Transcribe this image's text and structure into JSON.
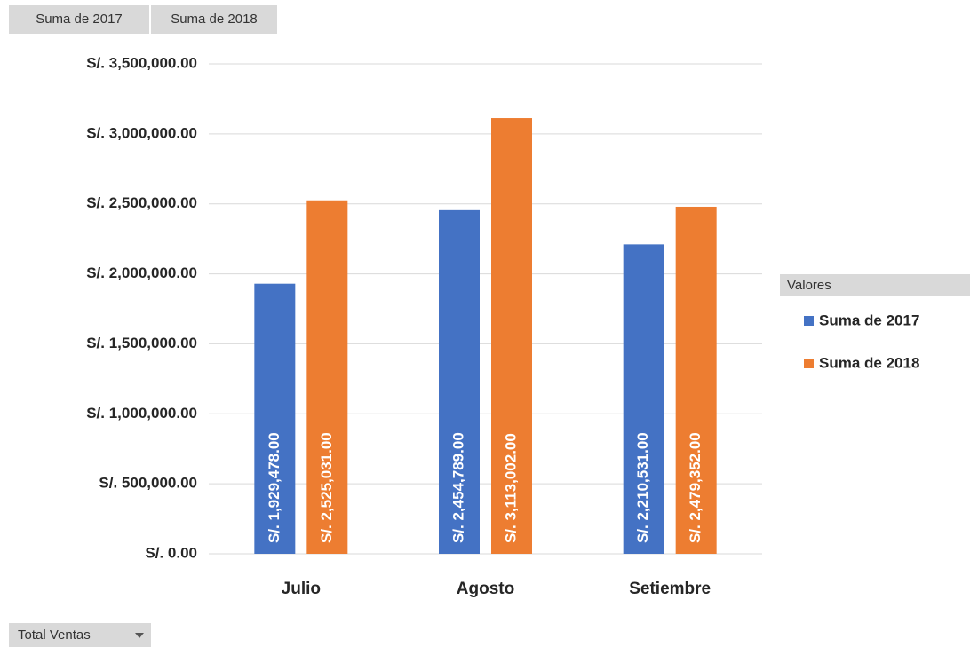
{
  "chart_data": {
    "type": "bar",
    "field_buttons": [
      "Suma de 2017",
      "Suma de 2018"
    ],
    "axis_field_button": "Total Ventas",
    "legend_title": "Valores",
    "legend": "right",
    "grid": true,
    "categories": [
      "Julio",
      "Agosto",
      "Setiembre"
    ],
    "series": [
      {
        "name": "Suma de 2017",
        "color": "#4472c4",
        "values": [
          1929478,
          2454789,
          2210531
        ],
        "value_labels": [
          "S/. 1,929,478.00",
          "S/. 2,454,789.00",
          "S/. 2,210,531.00"
        ]
      },
      {
        "name": "Suma de 2018",
        "color": "#ed7d31",
        "values": [
          2525031,
          3113002,
          2479352
        ],
        "value_labels": [
          "S/. 2,525,031.00",
          "S/. 3,113,002.00",
          "S/. 2,479,352.00"
        ]
      }
    ],
    "ylim": [
      0,
      3500000
    ],
    "yticks": [
      {
        "value": 0,
        "label": "S/. 0.00"
      },
      {
        "value": 500000,
        "label": "S/. 500,000.00"
      },
      {
        "value": 1000000,
        "label": "S/. 1,000,000.00"
      },
      {
        "value": 1500000,
        "label": "S/. 1,500,000.00"
      },
      {
        "value": 2000000,
        "label": "S/. 2,000,000.00"
      },
      {
        "value": 2500000,
        "label": "S/. 2,500,000.00"
      },
      {
        "value": 3000000,
        "label": "S/. 3,000,000.00"
      },
      {
        "value": 3500000,
        "label": "S/. 3,500,000.00"
      }
    ]
  }
}
